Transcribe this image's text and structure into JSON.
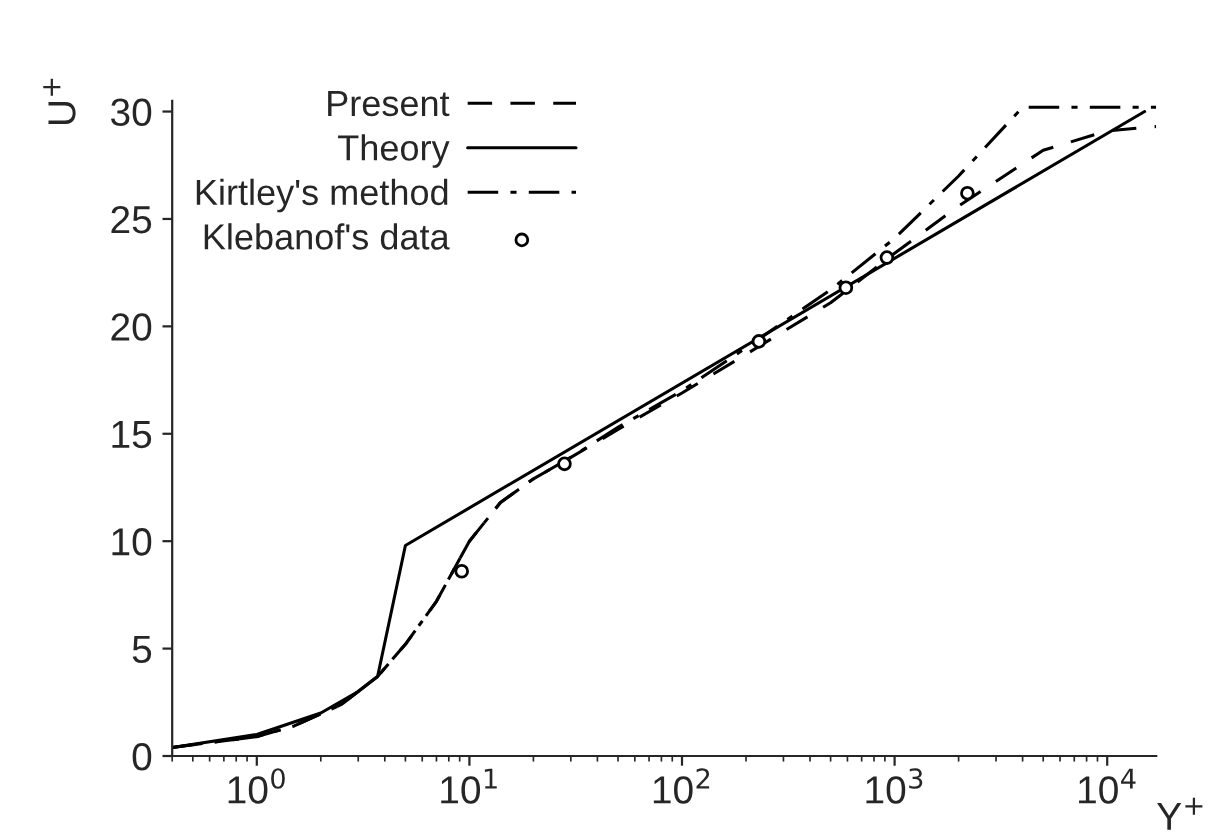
{
  "chart_data": {
    "type": "line",
    "xlabel": "Y$^{+}$",
    "ylabel": "U$^{+}$",
    "log": "x",
    "grid": false,
    "legend": "top left",
    "xlim": [
      0.4,
      17000
    ],
    "ylim": [
      0,
      30.5
    ],
    "xticks": [
      {
        "value": 1,
        "label": "10$^{0}$"
      },
      {
        "value": 10,
        "label": "10$^{1}$"
      },
      {
        "value": 100,
        "label": "10$^{2}$"
      },
      {
        "value": 1000,
        "label": "10$^{3}$"
      },
      {
        "value": 10000,
        "label": "10$^{4}$"
      }
    ],
    "yticks": [
      0,
      5,
      10,
      15,
      20,
      25,
      30
    ],
    "series": [
      {
        "name": "Present",
        "color": "#000000",
        "line_style": "dashed",
        "x": [
          0.4,
          1,
          1.5,
          2.5,
          3.7,
          5,
          7,
          10,
          14,
          20,
          30,
          50,
          100,
          200,
          500,
          1000,
          2000,
          5000,
          10000,
          17000
        ],
        "values": [
          0.4,
          0.9,
          1.4,
          2.4,
          3.7,
          5.2,
          7.2,
          10.0,
          11.8,
          12.9,
          13.9,
          15.2,
          16.9,
          18.7,
          21.1,
          23.4,
          25.6,
          28.2,
          29.1,
          29.3
        ]
      },
      {
        "name": "Theory",
        "color": "#000000",
        "line_style": "solid",
        "x": [
          0.4,
          1,
          2,
          3,
          3.7,
          5,
          15000
        ],
        "values": [
          0.4,
          1.0,
          2.0,
          3.0,
          3.7,
          9.8,
          30.0
        ]
      },
      {
        "name": "Kirtley's method",
        "color": "#000000",
        "line_style": "dashdot",
        "x": [
          0.4,
          1,
          1.5,
          2.5,
          3.7,
          5,
          7,
          10,
          14,
          20,
          30,
          50,
          100,
          200,
          500,
          1000,
          2000,
          4000,
          17000
        ],
        "values": [
          0.4,
          0.9,
          1.4,
          2.4,
          3.7,
          5.2,
          7.2,
          10.0,
          11.8,
          12.9,
          13.9,
          15.3,
          17.0,
          19.0,
          21.7,
          24.1,
          27.0,
          30.2,
          30.2
        ]
      },
      {
        "name": "Klebanof's data",
        "color": "#000000",
        "type": "scatter",
        "marker": "circle",
        "x": [
          9.2,
          28,
          230,
          590,
          920,
          2200
        ],
        "values": [
          8.6,
          13.6,
          19.3,
          21.8,
          23.2,
          26.2
        ]
      }
    ]
  }
}
